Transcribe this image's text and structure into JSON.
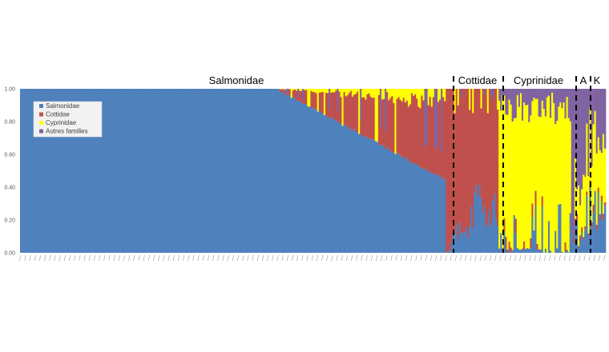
{
  "chart_data": {
    "type": "bar",
    "stacked": true,
    "y_tick_labels": [
      "0.00",
      "0.20",
      "0.40",
      "0.60",
      "0.80",
      "1.00"
    ],
    "ylim": [
      0,
      1
    ],
    "grid": false,
    "legend_position": "top-left",
    "group_labels": [
      "Salmonidae",
      "Cottidae",
      "Cyprinidae",
      "A",
      "K"
    ],
    "series": [
      {
        "name": "Salmonidae",
        "color": "#4F81BD"
      },
      {
        "name": "Cottidae",
        "color": "#C0504D"
      },
      {
        "name": "Cyprinidae",
        "color": "#FFFF00"
      },
      {
        "name": "Autres familles",
        "color": "#8064A2"
      }
    ],
    "profile_description": "Per-sample stacked proportions; Salmonidae section: first ~157 samples 1.00 Salmonidae, then Salmonidae declining to ~0.45 with Cottidae/Cyprinidae/Autres above; Cottidae section mostly Cottidae; Cyprinidae section mostly Cyprinidae; A and K sections mixed with Autres familles"
  }
}
